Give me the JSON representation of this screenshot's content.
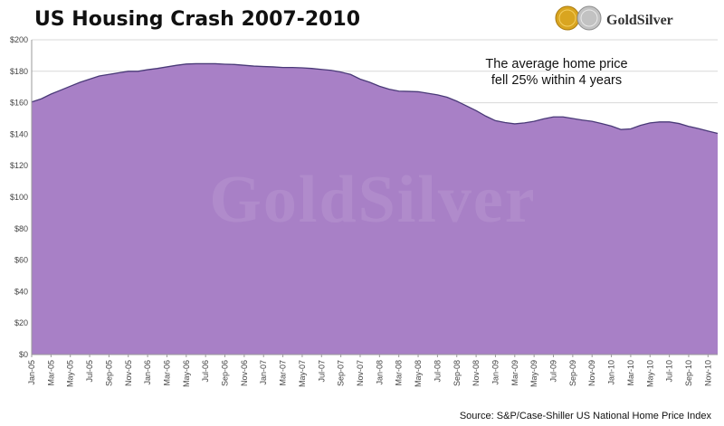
{
  "chart_data": {
    "type": "area",
    "title": "US Housing Crash 2007-2010",
    "xlabel": "",
    "ylabel": "",
    "ylim": [
      0,
      200
    ],
    "yticks": [
      0,
      20,
      40,
      60,
      80,
      100,
      120,
      140,
      160,
      180,
      200
    ],
    "ytick_labels": [
      "$0",
      "$20",
      "$40",
      "$60",
      "$80",
      "$100",
      "$120",
      "$140",
      "$160",
      "$180",
      "$200"
    ],
    "grid": true,
    "x": [
      "Jan-05",
      "Feb-05",
      "Mar-05",
      "Apr-05",
      "May-05",
      "Jun-05",
      "Jul-05",
      "Aug-05",
      "Sep-05",
      "Oct-05",
      "Nov-05",
      "Dec-05",
      "Jan-06",
      "Feb-06",
      "Mar-06",
      "Apr-06",
      "May-06",
      "Jun-06",
      "Jul-06",
      "Aug-06",
      "Sep-06",
      "Oct-06",
      "Nov-06",
      "Dec-06",
      "Jan-07",
      "Feb-07",
      "Mar-07",
      "Apr-07",
      "May-07",
      "Jun-07",
      "Jul-07",
      "Aug-07",
      "Sep-07",
      "Oct-07",
      "Nov-07",
      "Dec-07",
      "Jan-08",
      "Feb-08",
      "Mar-08",
      "Apr-08",
      "May-08",
      "Jun-08",
      "Jul-08",
      "Aug-08",
      "Sep-08",
      "Oct-08",
      "Nov-08",
      "Dec-08",
      "Jan-09",
      "Feb-09",
      "Mar-09",
      "Apr-09",
      "May-09",
      "Jun-09",
      "Jul-09",
      "Aug-09",
      "Sep-09",
      "Oct-09",
      "Nov-09",
      "Dec-09",
      "Jan-10",
      "Feb-10",
      "Mar-10",
      "Apr-10",
      "May-10",
      "Jun-10",
      "Jul-10",
      "Aug-10",
      "Sep-10",
      "Oct-10",
      "Nov-10",
      "Dec-10"
    ],
    "x_tick_labels": [
      "Jan-05",
      "Mar-05",
      "May-05",
      "Jul-05",
      "Sep-05",
      "Nov-05",
      "Jan-06",
      "Mar-06",
      "May-06",
      "Jul-06",
      "Sep-06",
      "Nov-06",
      "Jan-07",
      "Mar-07",
      "May-07",
      "Jul-07",
      "Sep-07",
      "Nov-07",
      "Jan-08",
      "Mar-08",
      "May-08",
      "Jul-08",
      "Sep-08",
      "Nov-08",
      "Jan-09",
      "Mar-09",
      "May-09",
      "Jul-09",
      "Sep-09",
      "Nov-09",
      "Jan-10",
      "Mar-10",
      "May-10",
      "Jul-10",
      "Sep-10",
      "Nov-10"
    ],
    "series": [
      {
        "name": "S&P/Case-Shiller US National Home Price Index",
        "values": [
          160.5,
          162.5,
          165.5,
          168.0,
          170.5,
          173.0,
          175.0,
          177.0,
          178.0,
          179.0,
          180.0,
          180.0,
          181.0,
          181.8,
          182.8,
          183.8,
          184.6,
          184.8,
          184.8,
          184.8,
          184.5,
          184.3,
          183.8,
          183.3,
          183.0,
          182.8,
          182.4,
          182.4,
          182.2,
          181.8,
          181.2,
          180.6,
          179.5,
          178.0,
          175.0,
          173.0,
          170.5,
          168.6,
          167.4,
          167.2,
          167.0,
          166.0,
          165.0,
          163.5,
          161.0,
          158.0,
          155.0,
          151.5,
          148.6,
          147.4,
          146.6,
          147.2,
          148.2,
          149.8,
          151.0,
          151.0,
          150.0,
          149.0,
          148.2,
          146.8,
          145.2,
          143.0,
          143.4,
          145.6,
          147.2,
          147.8,
          147.8,
          146.8,
          145.0,
          143.6,
          142.0,
          140.5
        ]
      }
    ],
    "colors": {
      "fill": "#a880c6",
      "line": "#4a3a78",
      "grid": "#d8d8d8",
      "axis": "#9a9a9a",
      "gold": "#d9a520",
      "silver": "#b8b8b8"
    },
    "annotation": [
      "The average home price",
      "fell 25% within 4 years"
    ],
    "source": "Source: S&P/Case-Shiller US National Home Price Index"
  },
  "logo": {
    "text": "GoldSilver",
    "icon": "gold-silver-coins-icon"
  },
  "watermark": "GoldSilver"
}
